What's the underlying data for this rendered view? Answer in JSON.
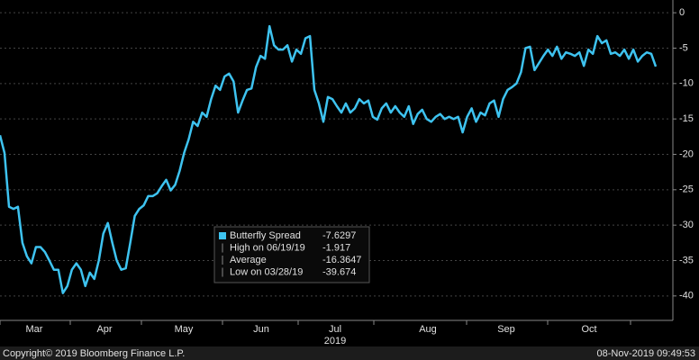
{
  "chart_data": {
    "type": "line",
    "series": [
      {
        "name": "Butterfly Spread",
        "color": "#3ec3f0",
        "values": [
          -17.3,
          -19.8,
          -27.4,
          -27.7,
          -27.4,
          -32.5,
          -34.4,
          -35.4,
          -33.1,
          -33.1,
          -33.8,
          -35.0,
          -36.3,
          -36.3,
          -39.6,
          -38.6,
          -36.3,
          -35.4,
          -36.3,
          -38.6,
          -36.7,
          -37.6,
          -35.0,
          -31.2,
          -29.7,
          -32.5,
          -35.0,
          -36.3,
          -36.1,
          -32.5,
          -28.7,
          -27.7,
          -27.2,
          -25.9,
          -25.9,
          -25.5,
          -24.5,
          -23.6,
          -25.1,
          -24.3,
          -22.3,
          -19.8,
          -17.9,
          -15.4,
          -16.0,
          -14.1,
          -14.7,
          -12.2,
          -10.3,
          -10.9,
          -9.0,
          -8.6,
          -9.7,
          -14.1,
          -12.4,
          -10.9,
          -10.7,
          -7.7,
          -6.1,
          -6.5,
          -1.9,
          -4.6,
          -5.2,
          -5.2,
          -4.6,
          -6.9,
          -5.2,
          -5.8,
          -3.6,
          -3.3,
          -10.9,
          -12.8,
          -15.4,
          -11.9,
          -12.2,
          -13.2,
          -14.1,
          -12.8,
          -14.1,
          -13.5,
          -12.2,
          -12.8,
          -12.4,
          -14.7,
          -15.1,
          -13.5,
          -12.8,
          -14.1,
          -13.2,
          -14.1,
          -14.7,
          -13.2,
          -15.7,
          -14.3,
          -13.7,
          -15.0,
          -15.4,
          -14.7,
          -14.3,
          -15.0,
          -14.7,
          -15.0,
          -14.7,
          -16.9,
          -14.7,
          -13.5,
          -15.4,
          -14.1,
          -14.5,
          -12.8,
          -12.4,
          -14.7,
          -12.2,
          -10.9,
          -10.5,
          -10.0,
          -8.4,
          -5.0,
          -4.8,
          -8.1,
          -7.1,
          -6.1,
          -5.2,
          -6.1,
          -4.8,
          -6.5,
          -5.6,
          -5.8,
          -6.1,
          -5.6,
          -7.5,
          -5.2,
          -5.8,
          -3.3,
          -4.3,
          -3.9,
          -5.8,
          -5.6,
          -6.1,
          -5.2,
          -6.5,
          -5.2,
          -6.9,
          -6.1,
          -5.6,
          -5.8,
          -7.6
        ]
      }
    ],
    "ylim": [
      -43.2,
      1.8
    ],
    "yticks": [
      0,
      -5,
      -10,
      -15,
      -20,
      -25,
      -30,
      -35,
      -40
    ],
    "grid": true,
    "xtick_labels": [
      "Mar",
      "Apr",
      "May",
      "Jun",
      "Jul",
      "Aug",
      "Sep",
      "Oct"
    ],
    "x_year": "2019",
    "legend_rows": [
      {
        "label": "Butterfly Spread",
        "value": -7.6297
      },
      {
        "label": "High on 06/19/19",
        "value": -1.917
      },
      {
        "label": "Average",
        "value": -16.3647
      },
      {
        "label": "Low on 03/28/19",
        "value": -39.674
      }
    ]
  },
  "footer": {
    "copyright": "Copyright© 2019 Bloomberg Finance L.P.",
    "timestamp": "08-Nov-2019 09:49:53"
  }
}
